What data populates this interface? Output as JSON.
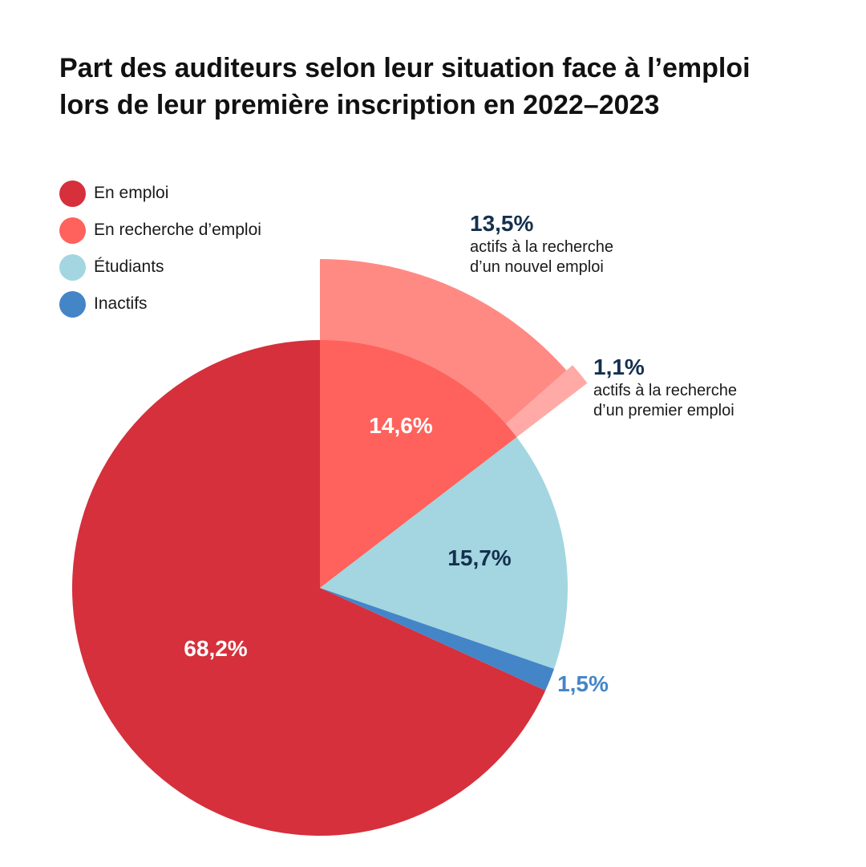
{
  "title": {
    "line1": "Part des auditeurs selon leur situation face à l’emploi",
    "line2": "lors de leur première inscription en 2022–2023"
  },
  "colors": {
    "en_emploi": "#d5303c",
    "en_recherche": "#ff625c",
    "etudiants": "#a3d6e0",
    "inactifs": "#4485c8",
    "sub_nouvel": "#ff8a84",
    "sub_premier": "#ffaaa6",
    "dark_label": "#14304f"
  },
  "chart_data": {
    "type": "pie",
    "title": "Part des auditeurs selon leur situation face à l’emploi lors de leur première inscription en 2022–2023",
    "legend_position": "top-left",
    "slices": [
      {
        "label": "En recherche d’emploi",
        "value": 14.6,
        "value_label": "14,6%",
        "color": "#ff625c"
      },
      {
        "label": "Étudiants",
        "value": 15.7,
        "value_label": "15,7%",
        "color": "#a3d6e0"
      },
      {
        "label": "Inactifs",
        "value": 1.5,
        "value_label": "1,5%",
        "color": "#4485c8"
      },
      {
        "label": "En emploi",
        "value": 68.2,
        "value_label": "68,2%",
        "color": "#d5303c"
      }
    ],
    "breakdown": {
      "of": "En recherche d’emploi",
      "parts": [
        {
          "value": 13.5,
          "value_label": "13,5%",
          "line1": "actifs à la recherche",
          "line2": "d’un nouvel emploi",
          "color": "#ff8a84"
        },
        {
          "value": 1.1,
          "value_label": "1,1%",
          "line1": "actifs à la recherche",
          "line2": "d’un premier emploi",
          "color": "#ffaaa6"
        }
      ]
    }
  },
  "legend": [
    {
      "label": "En emploi",
      "color": "#d5303c"
    },
    {
      "label": "En recherche d’emploi",
      "color": "#ff625c"
    },
    {
      "label": "Étudiants",
      "color": "#a3d6e0"
    },
    {
      "label": "Inactifs",
      "color": "#4485c8"
    }
  ]
}
